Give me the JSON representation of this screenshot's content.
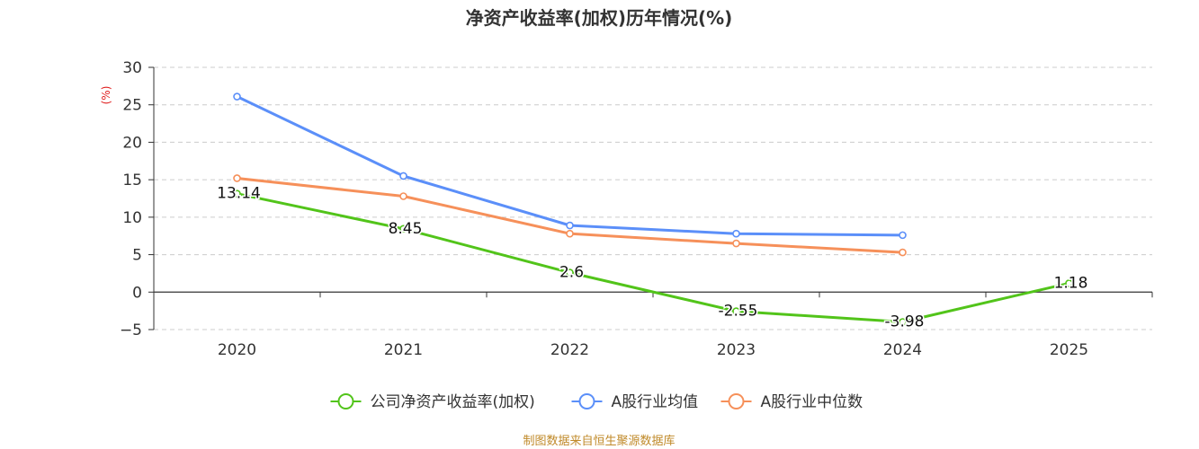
{
  "chart_data": {
    "type": "line",
    "title": "净资产收益率(加权)历年情况(%)",
    "ylabel": "(%)",
    "categories": [
      "2020",
      "2021",
      "2022",
      "2023",
      "2024",
      "2025"
    ],
    "ylim": [
      -5,
      30
    ],
    "yticks": [
      -5,
      0,
      5,
      10,
      15,
      20,
      25,
      30
    ],
    "grid": true,
    "legend_position": "bottom",
    "series": [
      {
        "name": "公司净资产收益率(加权)",
        "color": "#52c41a",
        "values": [
          13.14,
          8.45,
          2.6,
          -2.55,
          -3.98,
          1.18
        ],
        "labels": [
          "13.14",
          "8.45",
          "2.6",
          "-2.55",
          "-3.98",
          "1.18"
        ]
      },
      {
        "name": "A股行业均值",
        "color": "#5b8ff9",
        "values": [
          26.1,
          15.5,
          8.9,
          7.8,
          7.6,
          null
        ]
      },
      {
        "name": "A股行业中位数",
        "color": "#f6905a",
        "values": [
          15.2,
          12.8,
          7.8,
          6.5,
          5.3,
          null
        ]
      }
    ]
  },
  "source": "制图数据来自恒生聚源数据库"
}
